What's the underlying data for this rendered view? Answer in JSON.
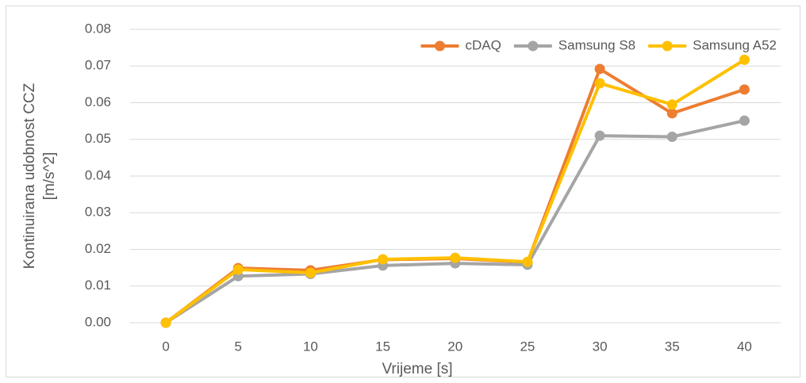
{
  "chart_data": {
    "type": "line",
    "categories": [
      "0",
      "5",
      "10",
      "15",
      "20",
      "25",
      "30",
      "35",
      "40"
    ],
    "series": [
      {
        "name": "cDAQ",
        "color": "#ED7D31",
        "values": [
          0,
          0.0149,
          0.0143,
          0.0172,
          0.0175,
          0.0165,
          0.0692,
          0.0571,
          0.0636
        ]
      },
      {
        "name": "Samsung S8",
        "color": "#A5A5A5",
        "values": [
          0,
          0.0127,
          0.0133,
          0.0156,
          0.0162,
          0.0158,
          0.051,
          0.0507,
          0.0551
        ]
      },
      {
        "name": "Samsung A52",
        "color": "#FFC000",
        "values": [
          0,
          0.0145,
          0.0136,
          0.0173,
          0.0177,
          0.0166,
          0.0653,
          0.0595,
          0.0717
        ]
      }
    ],
    "x_label": "Vrijeme [s]",
    "y_label": [
      "Kontinuirana udobnost CCZ",
      "[m/s^2]"
    ],
    "ylim": [
      0,
      0.08
    ],
    "yticks": [
      {
        "value": 0,
        "label": "0.00"
      },
      0.01,
      0.02,
      0.03,
      0.04,
      0.05,
      0.06,
      0.07,
      0.08
    ],
    "grid": true,
    "legend": "top-right"
  }
}
